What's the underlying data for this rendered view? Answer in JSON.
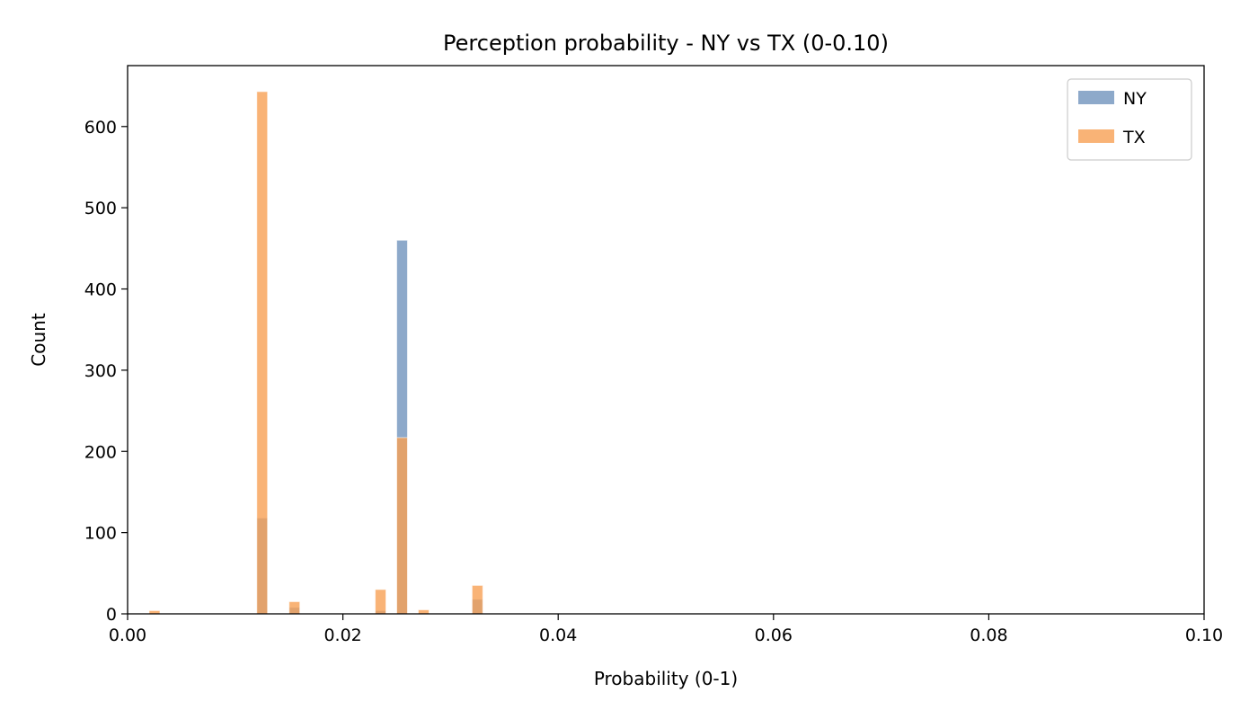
{
  "chart_data": {
    "type": "bar",
    "title": "Perception probability - NY vs TX (0-0.10)",
    "xlabel": "Probability (0-1)",
    "ylabel": "Count",
    "xlim": [
      0,
      0.1
    ],
    "ylim": [
      0,
      675
    ],
    "xticks": [
      "0.00",
      "0.02",
      "0.04",
      "0.06",
      "0.08",
      "0.10"
    ],
    "xtick_values": [
      0,
      0.02,
      0.04,
      0.06,
      0.08,
      0.1
    ],
    "yticks": [
      "0",
      "100",
      "200",
      "300",
      "400",
      "500",
      "600"
    ],
    "ytick_values": [
      0,
      100,
      200,
      300,
      400,
      500,
      600
    ],
    "bin_width": 0.001,
    "grid": false,
    "legend_position": "top-right",
    "series": [
      {
        "name": "NY",
        "color": "#7193bd",
        "bars": [
          {
            "x": 0.012,
            "value": 118
          },
          {
            "x": 0.015,
            "value": 8
          },
          {
            "x": 0.023,
            "value": 4
          },
          {
            "x": 0.025,
            "value": 460
          },
          {
            "x": 0.032,
            "value": 18
          }
        ]
      },
      {
        "name": "TX",
        "color": "#f7a054",
        "bars": [
          {
            "x": 0.002,
            "value": 4
          },
          {
            "x": 0.012,
            "value": 643
          },
          {
            "x": 0.015,
            "value": 15
          },
          {
            "x": 0.023,
            "value": 30
          },
          {
            "x": 0.025,
            "value": 217
          },
          {
            "x": 0.027,
            "value": 5
          },
          {
            "x": 0.032,
            "value": 35
          }
        ]
      }
    ]
  }
}
